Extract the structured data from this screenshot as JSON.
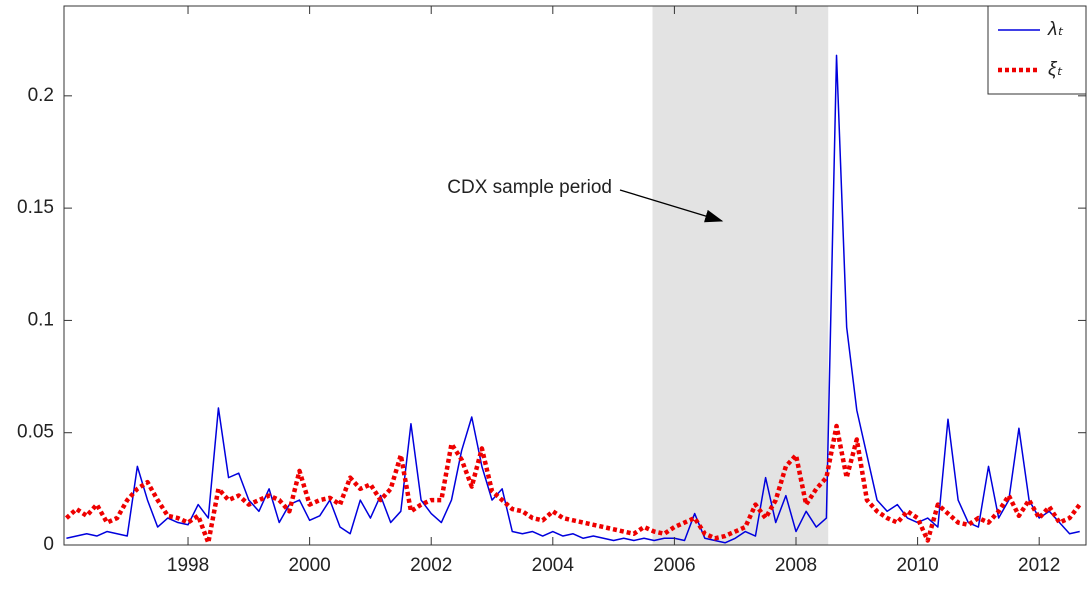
{
  "chart_data": {
    "type": "line",
    "annotation": "CDX sample period",
    "shade": [
      2005.64,
      2008.53
    ],
    "x0": 1996,
    "x_step_per_year": 6,
    "xlim": [
      1995.96,
      2012.77
    ],
    "xticks": [
      1998,
      2000,
      2002,
      2004,
      2006,
      2008,
      2010,
      2012
    ],
    "ylim": [
      0,
      0.24
    ],
    "yticks": [
      0,
      0.05,
      0.1,
      0.15,
      0.2
    ],
    "legend": "upper right",
    "series": [
      {
        "name": "λₜ",
        "color": "#0000dd",
        "style": "solid",
        "values": [
          0.003,
          0.004,
          0.005,
          0.004,
          0.006,
          0.005,
          0.004,
          0.035,
          0.02,
          0.008,
          0.012,
          0.01,
          0.009,
          0.018,
          0.012,
          0.061,
          0.03,
          0.032,
          0.02,
          0.015,
          0.025,
          0.01,
          0.018,
          0.02,
          0.011,
          0.013,
          0.02,
          0.008,
          0.005,
          0.02,
          0.012,
          0.022,
          0.01,
          0.015,
          0.054,
          0.02,
          0.014,
          0.01,
          0.02,
          0.042,
          0.057,
          0.035,
          0.02,
          0.025,
          0.006,
          0.005,
          0.006,
          0.004,
          0.006,
          0.004,
          0.005,
          0.003,
          0.004,
          0.003,
          0.002,
          0.003,
          0.002,
          0.003,
          0.002,
          0.003,
          0.003,
          0.002,
          0.014,
          0.003,
          0.002,
          0.001,
          0.003,
          0.006,
          0.004,
          0.03,
          0.01,
          0.022,
          0.006,
          0.015,
          0.008,
          0.012,
          0.218,
          0.097,
          0.06,
          0.04,
          0.02,
          0.015,
          0.018,
          0.012,
          0.01,
          0.012,
          0.008,
          0.056,
          0.02,
          0.01,
          0.008,
          0.035,
          0.012,
          0.02,
          0.052,
          0.02,
          0.012,
          0.015,
          0.01,
          0.005,
          0.006
        ]
      },
      {
        "name": "ξₜ",
        "color": "#ee0000",
        "style": "dotted",
        "values": [
          0.012,
          0.016,
          0.013,
          0.018,
          0.01,
          0.012,
          0.02,
          0.025,
          0.028,
          0.02,
          0.013,
          0.012,
          0.01,
          0.013,
          0.001,
          0.025,
          0.02,
          0.022,
          0.018,
          0.02,
          0.022,
          0.02,
          0.015,
          0.033,
          0.018,
          0.02,
          0.021,
          0.018,
          0.03,
          0.025,
          0.027,
          0.02,
          0.025,
          0.04,
          0.015,
          0.018,
          0.02,
          0.02,
          0.045,
          0.038,
          0.026,
          0.043,
          0.024,
          0.02,
          0.016,
          0.015,
          0.012,
          0.011,
          0.015,
          0.012,
          0.011,
          0.01,
          0.009,
          0.008,
          0.007,
          0.006,
          0.005,
          0.008,
          0.006,
          0.005,
          0.008,
          0.01,
          0.012,
          0.005,
          0.003,
          0.004,
          0.006,
          0.008,
          0.018,
          0.012,
          0.02,
          0.035,
          0.04,
          0.018,
          0.025,
          0.03,
          0.053,
          0.03,
          0.047,
          0.02,
          0.015,
          0.012,
          0.01,
          0.015,
          0.012,
          0.002,
          0.018,
          0.014,
          0.01,
          0.009,
          0.012,
          0.01,
          0.015,
          0.022,
          0.013,
          0.02,
          0.012,
          0.017,
          0.01,
          0.012,
          0.018
        ]
      }
    ]
  }
}
